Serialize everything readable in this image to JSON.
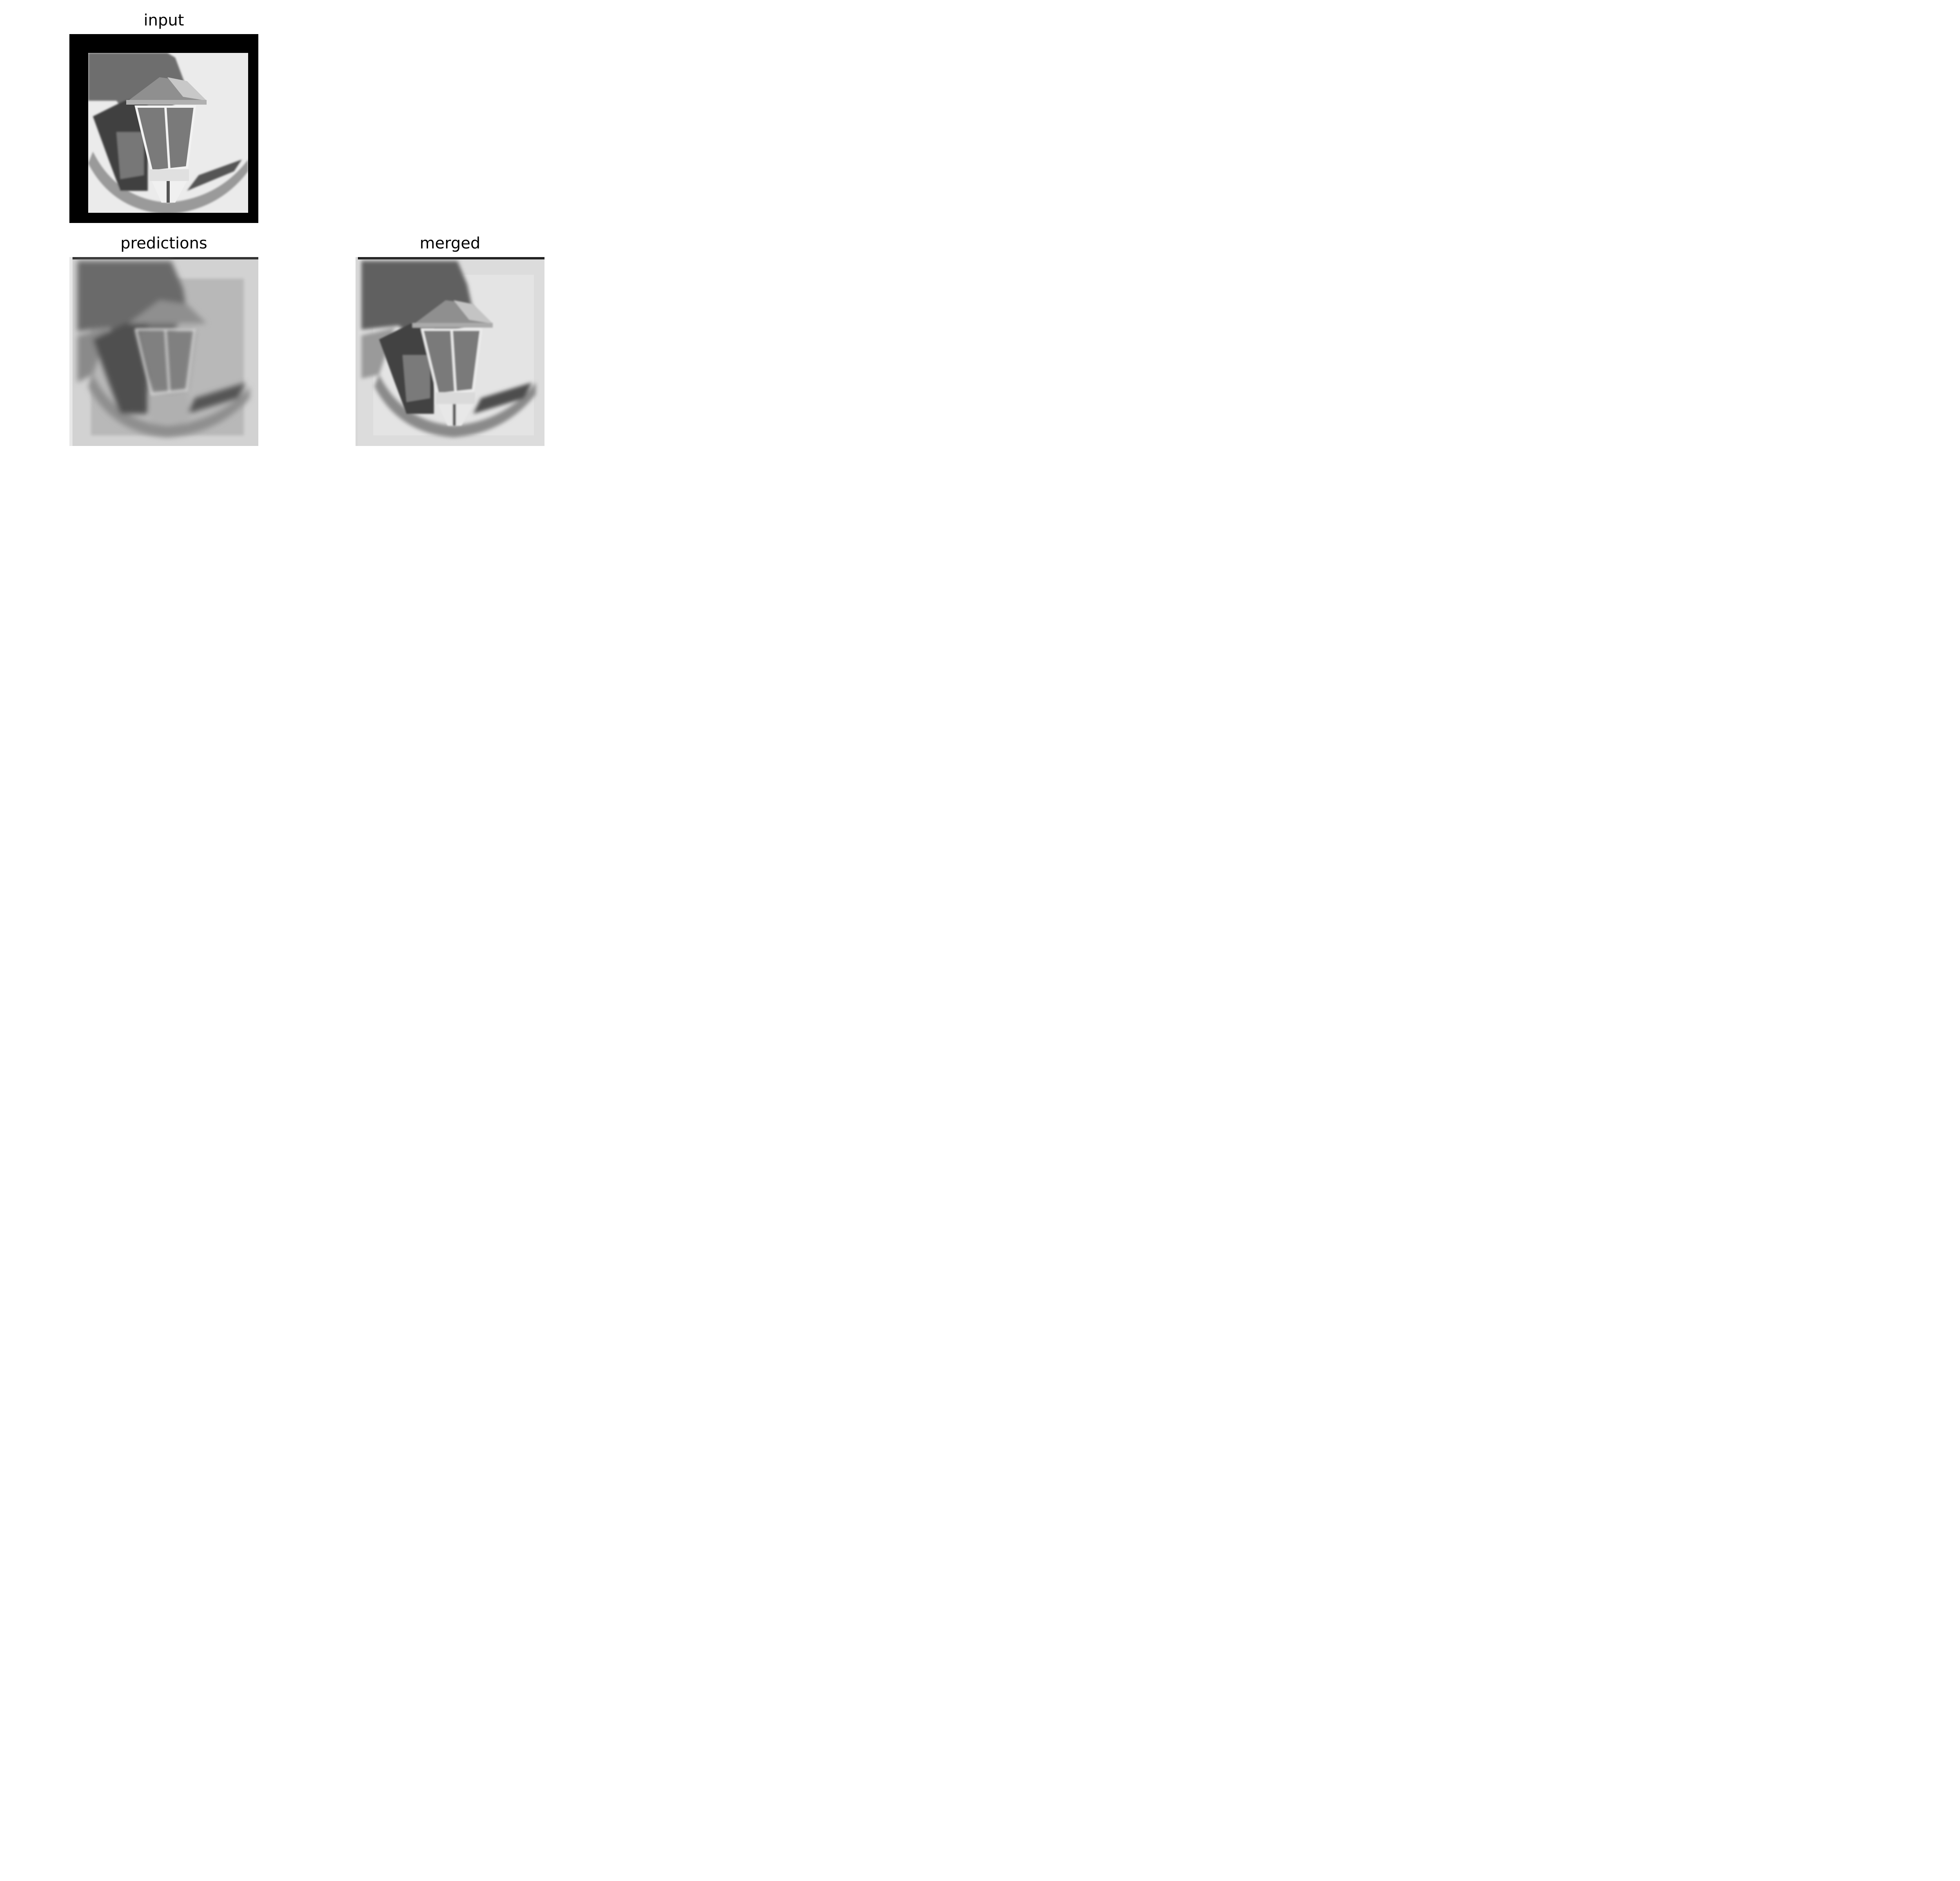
{
  "panels": {
    "input": {
      "title": "input"
    },
    "predictions": {
      "title": "predictions"
    },
    "merged": {
      "title": "merged"
    }
  },
  "colors": {
    "background": "#ffffff",
    "frame_black": "#000000",
    "wall_light": "#ebebeb",
    "shadow_dark": "#4a4a4a"
  }
}
